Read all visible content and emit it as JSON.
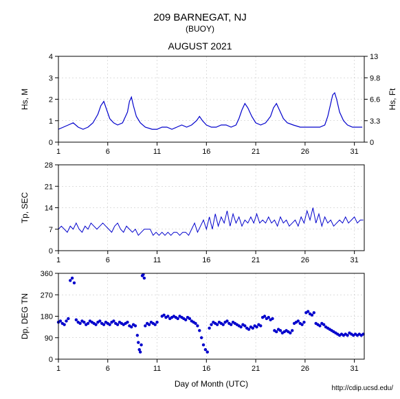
{
  "header": {
    "title": "209 BARNEGAT, NJ",
    "subtitle": "(BUOY)",
    "period": "AUGUST 2021"
  },
  "xaxis": {
    "label": "Day of Month (UTC)",
    "min": 1,
    "max": 32,
    "ticks": [
      1,
      6,
      11,
      16,
      21,
      26,
      31
    ]
  },
  "credit": "http://cdip.ucsd.edu/",
  "colors": {
    "line": "#0000cc",
    "marker": "#0000cc",
    "axis": "#000000",
    "grid": "#bbbbbb",
    "bg": "#ffffff"
  },
  "panels": {
    "hs": {
      "ylabel_left": "Hs, M",
      "ylim_left": [
        0,
        4
      ],
      "yticks_left": [
        0,
        1,
        2,
        3,
        4
      ],
      "ylabel_right": "Hs, Ft",
      "yticks_right": [
        0,
        3.3,
        6.6,
        9.8,
        13
      ],
      "line_width": 1.2,
      "data": [
        [
          1.0,
          0.6
        ],
        [
          1.5,
          0.7
        ],
        [
          2.0,
          0.8
        ],
        [
          2.5,
          0.9
        ],
        [
          3.0,
          0.7
        ],
        [
          3.5,
          0.6
        ],
        [
          4.0,
          0.7
        ],
        [
          4.5,
          0.9
        ],
        [
          5.0,
          1.3
        ],
        [
          5.3,
          1.7
        ],
        [
          5.6,
          1.9
        ],
        [
          5.9,
          1.5
        ],
        [
          6.2,
          1.1
        ],
        [
          6.6,
          0.9
        ],
        [
          7.0,
          0.8
        ],
        [
          7.5,
          0.9
        ],
        [
          8.0,
          1.4
        ],
        [
          8.2,
          1.9
        ],
        [
          8.4,
          2.1
        ],
        [
          8.6,
          1.7
        ],
        [
          8.9,
          1.2
        ],
        [
          9.3,
          0.9
        ],
        [
          9.8,
          0.7
        ],
        [
          10.5,
          0.6
        ],
        [
          11.0,
          0.6
        ],
        [
          11.5,
          0.7
        ],
        [
          12.0,
          0.7
        ],
        [
          12.5,
          0.6
        ],
        [
          13.0,
          0.7
        ],
        [
          13.5,
          0.8
        ],
        [
          14.0,
          0.7
        ],
        [
          14.5,
          0.8
        ],
        [
          15.0,
          1.0
        ],
        [
          15.3,
          1.2
        ],
        [
          15.6,
          1.0
        ],
        [
          16.0,
          0.8
        ],
        [
          16.5,
          0.7
        ],
        [
          17.0,
          0.7
        ],
        [
          17.5,
          0.8
        ],
        [
          18.0,
          0.8
        ],
        [
          18.5,
          0.7
        ],
        [
          19.0,
          0.8
        ],
        [
          19.3,
          1.1
        ],
        [
          19.6,
          1.5
        ],
        [
          19.9,
          1.8
        ],
        [
          20.2,
          1.6
        ],
        [
          20.6,
          1.2
        ],
        [
          21.0,
          0.9
        ],
        [
          21.5,
          0.8
        ],
        [
          22.0,
          0.9
        ],
        [
          22.5,
          1.2
        ],
        [
          22.8,
          1.6
        ],
        [
          23.1,
          1.8
        ],
        [
          23.4,
          1.5
        ],
        [
          23.8,
          1.1
        ],
        [
          24.2,
          0.9
        ],
        [
          24.8,
          0.8
        ],
        [
          25.5,
          0.7
        ],
        [
          26.0,
          0.7
        ],
        [
          26.5,
          0.7
        ],
        [
          27.0,
          0.7
        ],
        [
          27.5,
          0.7
        ],
        [
          28.0,
          0.8
        ],
        [
          28.3,
          1.2
        ],
        [
          28.6,
          1.8
        ],
        [
          28.8,
          2.2
        ],
        [
          29.0,
          2.3
        ],
        [
          29.2,
          2.0
        ],
        [
          29.5,
          1.4
        ],
        [
          29.9,
          1.0
        ],
        [
          30.3,
          0.8
        ],
        [
          30.8,
          0.7
        ],
        [
          31.3,
          0.7
        ],
        [
          31.8,
          0.7
        ]
      ]
    },
    "tp": {
      "ylabel": "Tp, SEC",
      "ylim": [
        0,
        28
      ],
      "yticks": [
        0,
        7,
        14,
        21,
        28
      ],
      "line_width": 1.0,
      "data": [
        [
          1.0,
          7
        ],
        [
          1.3,
          8
        ],
        [
          1.6,
          7
        ],
        [
          1.9,
          6
        ],
        [
          2.2,
          8
        ],
        [
          2.5,
          7
        ],
        [
          2.8,
          9
        ],
        [
          3.1,
          7
        ],
        [
          3.4,
          6
        ],
        [
          3.7,
          8
        ],
        [
          4.0,
          7
        ],
        [
          4.3,
          9
        ],
        [
          4.6,
          8
        ],
        [
          4.9,
          7
        ],
        [
          5.2,
          8
        ],
        [
          5.5,
          9
        ],
        [
          5.8,
          8
        ],
        [
          6.1,
          7
        ],
        [
          6.4,
          6
        ],
        [
          6.7,
          8
        ],
        [
          7.0,
          9
        ],
        [
          7.3,
          7
        ],
        [
          7.6,
          6
        ],
        [
          7.9,
          8
        ],
        [
          8.2,
          7
        ],
        [
          8.5,
          6
        ],
        [
          8.8,
          7
        ],
        [
          9.1,
          5
        ],
        [
          9.4,
          6
        ],
        [
          9.7,
          7
        ],
        [
          10.0,
          7
        ],
        [
          10.3,
          7
        ],
        [
          10.6,
          5
        ],
        [
          10.9,
          6
        ],
        [
          11.2,
          5
        ],
        [
          11.5,
          6
        ],
        [
          11.8,
          5
        ],
        [
          12.1,
          6
        ],
        [
          12.4,
          5
        ],
        [
          12.7,
          6
        ],
        [
          13.0,
          6
        ],
        [
          13.3,
          5
        ],
        [
          13.6,
          6
        ],
        [
          13.9,
          6
        ],
        [
          14.2,
          5
        ],
        [
          14.5,
          7
        ],
        [
          14.8,
          9
        ],
        [
          15.1,
          6
        ],
        [
          15.4,
          8
        ],
        [
          15.7,
          10
        ],
        [
          16.0,
          7
        ],
        [
          16.3,
          11
        ],
        [
          16.6,
          7
        ],
        [
          16.9,
          12
        ],
        [
          17.2,
          8
        ],
        [
          17.5,
          11
        ],
        [
          17.8,
          9
        ],
        [
          18.1,
          13
        ],
        [
          18.4,
          8
        ],
        [
          18.7,
          12
        ],
        [
          19.0,
          9
        ],
        [
          19.3,
          11
        ],
        [
          19.6,
          8
        ],
        [
          19.9,
          10
        ],
        [
          20.2,
          9
        ],
        [
          20.5,
          11
        ],
        [
          20.8,
          9
        ],
        [
          21.1,
          12
        ],
        [
          21.4,
          9
        ],
        [
          21.7,
          10
        ],
        [
          22.0,
          9
        ],
        [
          22.3,
          11
        ],
        [
          22.6,
          9
        ],
        [
          22.9,
          10
        ],
        [
          23.2,
          8
        ],
        [
          23.5,
          11
        ],
        [
          23.8,
          9
        ],
        [
          24.1,
          10
        ],
        [
          24.4,
          8
        ],
        [
          24.7,
          9
        ],
        [
          25.0,
          10
        ],
        [
          25.3,
          8
        ],
        [
          25.6,
          11
        ],
        [
          25.9,
          9
        ],
        [
          26.2,
          13
        ],
        [
          26.5,
          10
        ],
        [
          26.8,
          14
        ],
        [
          27.1,
          9
        ],
        [
          27.4,
          12
        ],
        [
          27.7,
          8
        ],
        [
          28.0,
          11
        ],
        [
          28.3,
          9
        ],
        [
          28.6,
          10
        ],
        [
          28.9,
          8
        ],
        [
          29.2,
          9
        ],
        [
          29.5,
          10
        ],
        [
          29.8,
          9
        ],
        [
          30.1,
          11
        ],
        [
          30.4,
          9
        ],
        [
          30.7,
          10
        ],
        [
          31.0,
          11
        ],
        [
          31.3,
          9
        ],
        [
          31.6,
          10
        ],
        [
          31.9,
          10
        ]
      ]
    },
    "dp": {
      "ylabel": "Dp, DEG TN",
      "ylim": [
        0,
        360
      ],
      "yticks": [
        0,
        90,
        180,
        270,
        360
      ],
      "marker_size": 2.2,
      "data": [
        [
          1.0,
          155
        ],
        [
          1.2,
          160
        ],
        [
          1.4,
          150
        ],
        [
          1.6,
          145
        ],
        [
          1.8,
          160
        ],
        [
          2.0,
          170
        ],
        [
          2.2,
          330
        ],
        [
          2.4,
          340
        ],
        [
          2.6,
          320
        ],
        [
          2.8,
          165
        ],
        [
          3.0,
          155
        ],
        [
          3.2,
          150
        ],
        [
          3.4,
          160
        ],
        [
          3.6,
          155
        ],
        [
          3.8,
          145
        ],
        [
          4.0,
          150
        ],
        [
          4.2,
          160
        ],
        [
          4.4,
          155
        ],
        [
          4.6,
          150
        ],
        [
          4.8,
          145
        ],
        [
          5.0,
          155
        ],
        [
          5.2,
          160
        ],
        [
          5.4,
          150
        ],
        [
          5.6,
          145
        ],
        [
          5.8,
          155
        ],
        [
          6.0,
          150
        ],
        [
          6.2,
          145
        ],
        [
          6.4,
          155
        ],
        [
          6.6,
          160
        ],
        [
          6.8,
          150
        ],
        [
          7.0,
          145
        ],
        [
          7.2,
          155
        ],
        [
          7.4,
          150
        ],
        [
          7.6,
          145
        ],
        [
          7.8,
          150
        ],
        [
          8.0,
          155
        ],
        [
          8.2,
          140
        ],
        [
          8.4,
          135
        ],
        [
          8.6,
          145
        ],
        [
          8.8,
          140
        ],
        [
          9.0,
          100
        ],
        [
          9.1,
          70
        ],
        [
          9.2,
          40
        ],
        [
          9.3,
          30
        ],
        [
          9.4,
          60
        ],
        [
          9.5,
          350
        ],
        [
          9.6,
          355
        ],
        [
          9.7,
          340
        ],
        [
          9.8,
          140
        ],
        [
          10.0,
          150
        ],
        [
          10.2,
          145
        ],
        [
          10.4,
          155
        ],
        [
          10.6,
          150
        ],
        [
          10.8,
          145
        ],
        [
          11.0,
          155
        ],
        [
          11.5,
          180
        ],
        [
          11.7,
          185
        ],
        [
          11.9,
          175
        ],
        [
          12.1,
          180
        ],
        [
          12.3,
          170
        ],
        [
          12.5,
          175
        ],
        [
          12.7,
          180
        ],
        [
          12.9,
          175
        ],
        [
          13.1,
          170
        ],
        [
          13.3,
          180
        ],
        [
          13.5,
          175
        ],
        [
          13.7,
          170
        ],
        [
          13.9,
          165
        ],
        [
          14.1,
          175
        ],
        [
          14.3,
          170
        ],
        [
          14.5,
          160
        ],
        [
          14.7,
          155
        ],
        [
          14.9,
          150
        ],
        [
          15.1,
          140
        ],
        [
          15.3,
          120
        ],
        [
          15.5,
          90
        ],
        [
          15.7,
          60
        ],
        [
          15.9,
          40
        ],
        [
          16.1,
          30
        ],
        [
          16.3,
          130
        ],
        [
          16.5,
          145
        ],
        [
          16.7,
          155
        ],
        [
          16.9,
          150
        ],
        [
          17.1,
          145
        ],
        [
          17.3,
          155
        ],
        [
          17.5,
          150
        ],
        [
          17.7,
          145
        ],
        [
          17.9,
          155
        ],
        [
          18.1,
          160
        ],
        [
          18.3,
          150
        ],
        [
          18.5,
          145
        ],
        [
          18.7,
          155
        ],
        [
          18.9,
          150
        ],
        [
          19.1,
          145
        ],
        [
          19.3,
          140
        ],
        [
          19.5,
          135
        ],
        [
          19.7,
          145
        ],
        [
          19.9,
          140
        ],
        [
          20.1,
          130
        ],
        [
          20.3,
          125
        ],
        [
          20.5,
          135
        ],
        [
          20.7,
          130
        ],
        [
          20.9,
          140
        ],
        [
          21.1,
          135
        ],
        [
          21.3,
          145
        ],
        [
          21.5,
          140
        ],
        [
          21.7,
          175
        ],
        [
          21.9,
          180
        ],
        [
          22.1,
          170
        ],
        [
          22.3,
          175
        ],
        [
          22.5,
          165
        ],
        [
          22.7,
          170
        ],
        [
          22.9,
          120
        ],
        [
          23.1,
          115
        ],
        [
          23.3,
          125
        ],
        [
          23.5,
          120
        ],
        [
          23.7,
          110
        ],
        [
          23.9,
          115
        ],
        [
          24.1,
          120
        ],
        [
          24.3,
          115
        ],
        [
          24.5,
          110
        ],
        [
          24.7,
          120
        ],
        [
          24.9,
          150
        ],
        [
          25.1,
          155
        ],
        [
          25.3,
          160
        ],
        [
          25.5,
          150
        ],
        [
          25.7,
          145
        ],
        [
          25.9,
          155
        ],
        [
          26.1,
          195
        ],
        [
          26.3,
          200
        ],
        [
          26.5,
          190
        ],
        [
          26.7,
          185
        ],
        [
          26.9,
          195
        ],
        [
          27.1,
          150
        ],
        [
          27.3,
          145
        ],
        [
          27.5,
          140
        ],
        [
          27.7,
          150
        ],
        [
          27.9,
          145
        ],
        [
          28.1,
          135
        ],
        [
          28.3,
          130
        ],
        [
          28.5,
          125
        ],
        [
          28.7,
          120
        ],
        [
          28.9,
          115
        ],
        [
          29.1,
          110
        ],
        [
          29.3,
          105
        ],
        [
          29.5,
          100
        ],
        [
          29.7,
          105
        ],
        [
          29.9,
          100
        ],
        [
          30.1,
          105
        ],
        [
          30.3,
          100
        ],
        [
          30.5,
          110
        ],
        [
          30.7,
          105
        ],
        [
          30.9,
          100
        ],
        [
          31.1,
          105
        ],
        [
          31.3,
          100
        ],
        [
          31.5,
          105
        ],
        [
          31.7,
          100
        ],
        [
          31.9,
          105
        ]
      ]
    }
  }
}
